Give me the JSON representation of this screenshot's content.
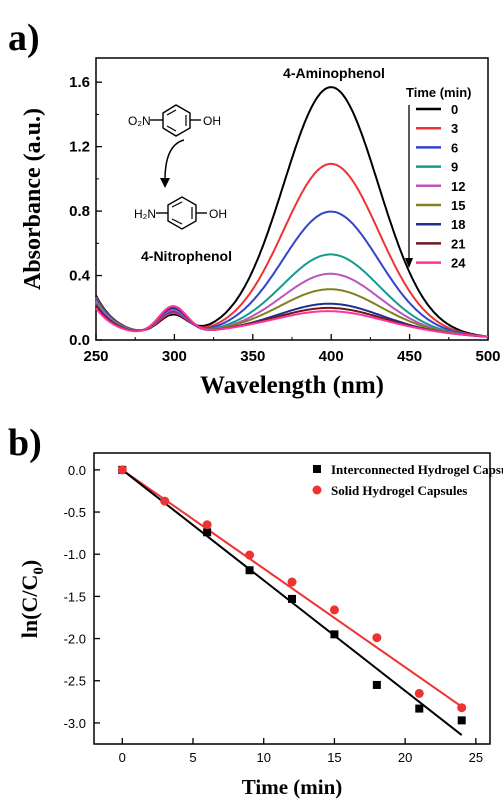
{
  "panels": {
    "a": {
      "label": "a)"
    },
    "b": {
      "label": "b)"
    }
  },
  "chart_data": [
    {
      "type": "line",
      "xlabel": "Wavelength (nm)",
      "ylabel": "Absorbance (a.u.)",
      "xlim": [
        250,
        500
      ],
      "ylim": [
        0,
        1.75
      ],
      "xticks": [
        250,
        300,
        350,
        400,
        450,
        500
      ],
      "yticks": [
        0.0,
        0.4,
        0.8,
        1.2,
        1.6
      ],
      "xtick_labels": [
        "250",
        "300",
        "350",
        "400",
        "450",
        "500"
      ],
      "ytick_labels": [
        "0.0",
        "0.4",
        "0.8",
        "1.2",
        "1.6"
      ],
      "legend_title": "Time (min)",
      "legend_placement": "top-right",
      "annotations": {
        "product_label": "4-Aminophenol",
        "reactant_label": "4-Nitrophenol",
        "nitro_group": "O₂N",
        "amine_group": "H₂N",
        "hydroxyl_top": "OH",
        "hydroxyl_bottom": "OH"
      },
      "series": [
        {
          "name": "0",
          "color": "#000000",
          "peak400": 1.5,
          "peak300": 0.12,
          "start250": 0.27
        },
        {
          "name": "3",
          "color": "#ee3333",
          "peak400": 1.02,
          "peak300": 0.13,
          "start250": 0.26
        },
        {
          "name": "6",
          "color": "#3344cc",
          "peak400": 0.72,
          "peak300": 0.14,
          "start250": 0.25
        },
        {
          "name": "9",
          "color": "#159a8f",
          "peak400": 0.45,
          "peak300": 0.15,
          "start250": 0.24
        },
        {
          "name": "12",
          "color": "#bb55bb",
          "peak400": 0.33,
          "peak300": 0.15,
          "start250": 0.23
        },
        {
          "name": "15",
          "color": "#808020",
          "peak400": 0.21,
          "peak300": 0.16,
          "start250": 0.22
        },
        {
          "name": "18",
          "color": "#1f2f8f",
          "peak400": 0.12,
          "peak300": 0.16,
          "start250": 0.21
        },
        {
          "name": "21",
          "color": "#6b1a1a",
          "peak400": 0.09,
          "peak300": 0.17,
          "start250": 0.2
        },
        {
          "name": "24",
          "color": "#ff3399",
          "peak400": 0.07,
          "peak300": 0.17,
          "start250": 0.19
        }
      ]
    },
    {
      "type": "scatter",
      "xlabel": "Time (min)",
      "ylabel": "ln(C/C",
      "ylabel_sub": "0",
      "ylabel_end": ")",
      "xlim": [
        -2,
        26
      ],
      "ylim": [
        -3.25,
        0.2
      ],
      "xticks": [
        0,
        5,
        10,
        15,
        20,
        25
      ],
      "yticks": [
        0.0,
        -0.5,
        -1.0,
        -1.5,
        -2.0,
        -2.5,
        -3.0
      ],
      "xtick_labels": [
        "0",
        "5",
        "10",
        "15",
        "20",
        "25"
      ],
      "ytick_labels": [
        "0.0",
        "-0.5",
        "-1.0",
        "-1.5",
        "-2.0",
        "-2.5",
        "-3.0"
      ],
      "legend_placement": "top-right",
      "series": [
        {
          "name": "Interconnected Hydrogel Capsules",
          "marker": "square",
          "color": "#000000",
          "x": [
            0,
            6,
            9,
            12,
            15,
            18,
            21,
            24
          ],
          "y": [
            0.0,
            -0.74,
            -1.19,
            -1.53,
            -1.95,
            -2.55,
            -2.83,
            -2.97
          ],
          "fit": {
            "slope": -0.131,
            "intercept": 0.0,
            "x_range": [
              0,
              24
            ]
          }
        },
        {
          "name": "Solid Hydrogel Capsules",
          "marker": "circle",
          "color": "#ee3333",
          "x": [
            0,
            3,
            6,
            9,
            12,
            15,
            18,
            21,
            24
          ],
          "y": [
            0.0,
            -0.37,
            -0.65,
            -1.01,
            -1.33,
            -1.66,
            -1.99,
            -2.65,
            -2.82
          ],
          "fit": {
            "slope": -0.117,
            "intercept": 0.0,
            "x_range": [
              0,
              24
            ]
          }
        }
      ]
    }
  ]
}
